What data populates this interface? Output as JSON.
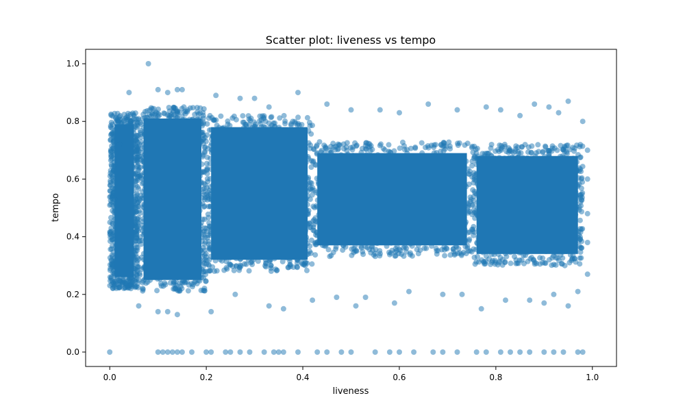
{
  "chart_data": {
    "type": "scatter",
    "title": "Scatter plot: liveness vs tempo",
    "xlabel": "liveness",
    "ylabel": "tempo",
    "xlim": [
      -0.05,
      1.05
    ],
    "ylim": [
      -0.05,
      1.05
    ],
    "xticks": [
      0.0,
      0.2,
      0.4,
      0.6,
      0.8,
      1.0
    ],
    "yticks": [
      0.0,
      0.2,
      0.4,
      0.6,
      0.8,
      1.0
    ],
    "xtick_labels": [
      "0.0",
      "0.2",
      "0.4",
      "0.6",
      "0.8",
      "1.0"
    ],
    "ytick_labels": [
      "0.0",
      "0.2",
      "0.4",
      "0.6",
      "0.8",
      "1.0"
    ],
    "grid": false,
    "legend": "none",
    "marker_color": "#1f77b4",
    "marker_alpha": 0.5,
    "density_bands": [
      {
        "x": [
          0.0,
          0.06
        ],
        "y": [
          0.22,
          0.83
        ]
      },
      {
        "x": [
          0.06,
          0.2
        ],
        "y": [
          0.21,
          0.85
        ]
      },
      {
        "x": [
          0.2,
          0.42
        ],
        "y": [
          0.28,
          0.82
        ]
      },
      {
        "x": [
          0.42,
          0.75
        ],
        "y": [
          0.33,
          0.73
        ]
      },
      {
        "x": [
          0.75,
          0.98
        ],
        "y": [
          0.3,
          0.72
        ]
      }
    ],
    "points": [
      [
        0.0,
        0.0
      ],
      [
        0.1,
        0.0
      ],
      [
        0.11,
        0.0
      ],
      [
        0.12,
        0.0
      ],
      [
        0.13,
        0.0
      ],
      [
        0.14,
        0.0
      ],
      [
        0.15,
        0.0
      ],
      [
        0.17,
        0.0
      ],
      [
        0.2,
        0.0
      ],
      [
        0.21,
        0.0
      ],
      [
        0.24,
        0.0
      ],
      [
        0.25,
        0.0
      ],
      [
        0.27,
        0.0
      ],
      [
        0.29,
        0.0
      ],
      [
        0.32,
        0.0
      ],
      [
        0.34,
        0.0
      ],
      [
        0.35,
        0.0
      ],
      [
        0.36,
        0.0
      ],
      [
        0.39,
        0.0
      ],
      [
        0.43,
        0.0
      ],
      [
        0.45,
        0.0
      ],
      [
        0.48,
        0.0
      ],
      [
        0.5,
        0.0
      ],
      [
        0.55,
        0.0
      ],
      [
        0.58,
        0.0
      ],
      [
        0.6,
        0.0
      ],
      [
        0.63,
        0.0
      ],
      [
        0.67,
        0.0
      ],
      [
        0.69,
        0.0
      ],
      [
        0.72,
        0.0
      ],
      [
        0.76,
        0.0
      ],
      [
        0.78,
        0.0
      ],
      [
        0.81,
        0.0
      ],
      [
        0.83,
        0.0
      ],
      [
        0.85,
        0.0
      ],
      [
        0.87,
        0.0
      ],
      [
        0.9,
        0.0
      ],
      [
        0.92,
        0.0
      ],
      [
        0.94,
        0.0
      ],
      [
        0.97,
        0.0
      ],
      [
        0.98,
        0.0
      ],
      [
        0.08,
        1.0
      ],
      [
        0.04,
        0.9
      ],
      [
        0.1,
        0.91
      ],
      [
        0.12,
        0.9
      ],
      [
        0.14,
        0.91
      ],
      [
        0.15,
        0.91
      ],
      [
        0.22,
        0.89
      ],
      [
        0.27,
        0.88
      ],
      [
        0.3,
        0.88
      ],
      [
        0.39,
        0.9
      ],
      [
        0.33,
        0.85
      ],
      [
        0.5,
        0.84
      ],
      [
        0.56,
        0.84
      ],
      [
        0.66,
        0.86
      ],
      [
        0.78,
        0.85
      ],
      [
        0.81,
        0.84
      ],
      [
        0.88,
        0.86
      ],
      [
        0.91,
        0.85
      ],
      [
        0.95,
        0.87
      ],
      [
        0.93,
        0.83
      ],
      [
        0.98,
        0.8
      ],
      [
        0.45,
        0.86
      ],
      [
        0.6,
        0.83
      ],
      [
        0.72,
        0.84
      ],
      [
        0.85,
        0.82
      ],
      [
        0.1,
        0.14
      ],
      [
        0.12,
        0.14
      ],
      [
        0.14,
        0.13
      ],
      [
        0.21,
        0.14
      ],
      [
        0.33,
        0.16
      ],
      [
        0.36,
        0.15
      ],
      [
        0.42,
        0.18
      ],
      [
        0.51,
        0.16
      ],
      [
        0.59,
        0.17
      ],
      [
        0.77,
        0.15
      ],
      [
        0.82,
        0.18
      ],
      [
        0.87,
        0.18
      ],
      [
        0.9,
        0.17
      ],
      [
        0.95,
        0.16
      ],
      [
        0.06,
        0.16
      ],
      [
        0.26,
        0.2
      ],
      [
        0.47,
        0.19
      ],
      [
        0.53,
        0.19
      ],
      [
        0.62,
        0.21
      ],
      [
        0.69,
        0.2
      ],
      [
        0.73,
        0.2
      ],
      [
        0.92,
        0.2
      ],
      [
        0.97,
        0.21
      ],
      [
        0.99,
        0.27
      ],
      [
        0.99,
        0.38
      ],
      [
        0.99,
        0.48
      ],
      [
        0.99,
        0.6
      ],
      [
        0.99,
        0.7
      ],
      [
        0.02,
        0.25
      ],
      [
        0.02,
        0.72
      ],
      [
        0.01,
        0.65
      ],
      [
        0.01,
        0.53
      ]
    ]
  }
}
